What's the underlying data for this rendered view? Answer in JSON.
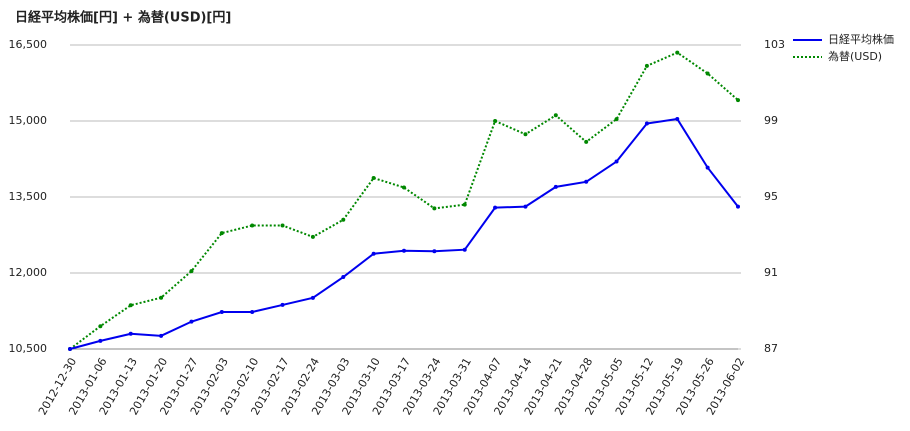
{
  "chart_data": {
    "type": "line",
    "title": "日経平均株価[円] + 為替(USD)[円]",
    "x": [
      "2012-12-30",
      "2013-01-06",
      "2013-01-13",
      "2013-01-20",
      "2013-01-27",
      "2013-02-03",
      "2013-02-10",
      "2013-02-17",
      "2013-02-24",
      "2013-03-03",
      "2013-03-10",
      "2013-03-17",
      "2013-03-24",
      "2013-03-31",
      "2013-04-07",
      "2013-04-14",
      "2013-04-21",
      "2013-04-28",
      "2013-05-05",
      "2013-05-12",
      "2013-05-19",
      "2013-05-26",
      "2013-06-02"
    ],
    "series": [
      {
        "name": "日経平均株価",
        "color": "#0000ee",
        "line_style": "solid",
        "values": [
          10500,
          10660,
          10800,
          10760,
          11040,
          11230,
          11230,
          11370,
          11510,
          11920,
          12380,
          12440,
          12430,
          12460,
          13290,
          13310,
          13700,
          13800,
          14200,
          14950,
          15040,
          14080,
          13310
        ]
      },
      {
        "name": "為替(USD)",
        "color": "#008800",
        "line_style": "dotted",
        "axis": "y2",
        "values": [
          87.0,
          88.2,
          89.3,
          89.7,
          91.1,
          93.1,
          93.5,
          93.5,
          92.9,
          93.8,
          96.0,
          95.5,
          94.4,
          94.6,
          99.0,
          98.3,
          99.3,
          97.9,
          99.1,
          101.9,
          102.6,
          101.5,
          100.1
        ]
      }
    ],
    "ylim": [
      10500,
      16500
    ],
    "yticks": [
      {
        "value": 10500,
        "label": "10,500"
      },
      {
        "value": 12000,
        "label": "12,000"
      },
      {
        "value": 13500,
        "label": "13,500"
      },
      {
        "value": 15000,
        "label": "15,000"
      },
      {
        "value": 16500,
        "label": "16,500"
      }
    ],
    "y2lim": [
      87,
      103
    ],
    "y2ticks": [
      87,
      91,
      95,
      99,
      103
    ],
    "grid": true,
    "legend": "right"
  }
}
